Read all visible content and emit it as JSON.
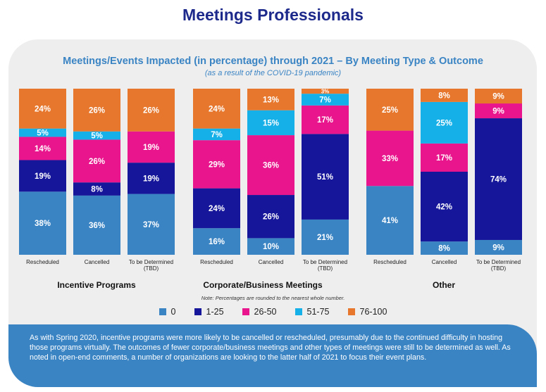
{
  "header": {
    "title": "Meetings Professionals"
  },
  "chart_data": {
    "type": "bar",
    "stacked": true,
    "title": "Meetings/Events Impacted (in percentage) through 2021 – By Meeting Type & Outcome",
    "subtitle": "(as a result of the COVID-19 pandemic)",
    "note": "Note: Percentages are rounded to the nearest whole number.",
    "legend_position": "bottom",
    "series": [
      {
        "name": "0",
        "color": "#3a84c4"
      },
      {
        "name": "1-25",
        "color": "#16169a"
      },
      {
        "name": "26-50",
        "color": "#e8158c"
      },
      {
        "name": "51-75",
        "color": "#16b0e8"
      },
      {
        "name": "76-100",
        "color": "#e6772c"
      }
    ],
    "groups": [
      {
        "name": "Incentive Programs",
        "bars": [
          {
            "category": "Rescheduled",
            "values": [
              38,
              19,
              14,
              5,
              24
            ]
          },
          {
            "category": "Cancelled",
            "values": [
              36,
              8,
              26,
              5,
              26
            ]
          },
          {
            "category": "To be Determined (TBD)",
            "values": [
              37,
              19,
              19,
              0,
              26
            ]
          }
        ]
      },
      {
        "name": "Corporate/Business Meetings",
        "bars": [
          {
            "category": "Rescheduled",
            "values": [
              16,
              24,
              29,
              7,
              24
            ]
          },
          {
            "category": "Cancelled",
            "values": [
              10,
              26,
              36,
              15,
              13
            ]
          },
          {
            "category": "To be Determined (TBD)",
            "values": [
              21,
              51,
              17,
              7,
              3
            ]
          }
        ]
      },
      {
        "name": "Other",
        "bars": [
          {
            "category": "Rescheduled",
            "values": [
              41,
              0,
              33,
              0,
              25
            ]
          },
          {
            "category": "Cancelled",
            "values": [
              8,
              42,
              17,
              25,
              8
            ]
          },
          {
            "category": "To be Determined (TBD)",
            "values": [
              9,
              74,
              9,
              0,
              9
            ]
          }
        ]
      }
    ]
  },
  "footer": {
    "text": "As with Spring 2020, incentive programs were more likely to be cancelled or rescheduled,   presumably due to the continued difficulty in hosting those programs virtually. The outcomes of fewer corporate/business meetings and other types of meetings were still to be determined as well. As noted in open-end comments, a number of organizations are looking to the latter half of 2021 to focus their event plans."
  }
}
